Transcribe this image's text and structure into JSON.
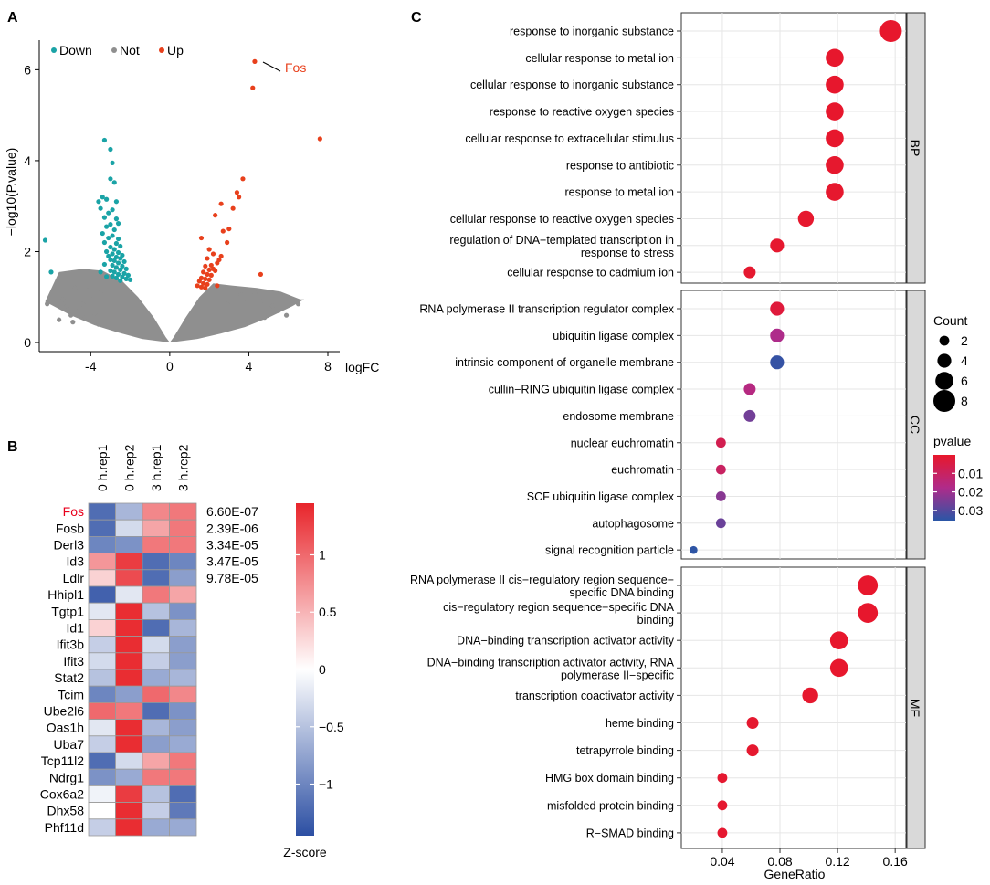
{
  "panels": {
    "A": "A",
    "B": "B",
    "C": "C"
  },
  "chart_data": [
    {
      "type": "scatter",
      "panel": "A",
      "title": "",
      "xlabel": "logFC",
      "ylabel": "−log10(P.value)",
      "xlim": [
        -6.6,
        8.6
      ],
      "ylim": [
        -0.2,
        6.65
      ],
      "xticks": [
        -4,
        0,
        4,
        8
      ],
      "yticks": [
        0,
        2,
        4,
        6
      ],
      "legend": {
        "position": "top-left",
        "entries": [
          {
            "name": "Down",
            "color": "#1aa3a6"
          },
          {
            "name": "Not",
            "color": "#8f8f8f"
          },
          {
            "name": "Up",
            "color": "#e8401c"
          }
        ]
      },
      "annotation": {
        "label": "Fos",
        "x": 4.3,
        "y": 6.18,
        "color": "#e8401c"
      },
      "up_points": [
        [
          4.3,
          6.18
        ],
        [
          4.2,
          5.6
        ],
        [
          7.6,
          4.48
        ],
        [
          3.7,
          3.6
        ],
        [
          3.4,
          3.3
        ],
        [
          3.5,
          3.2
        ],
        [
          3.2,
          2.95
        ],
        [
          2.6,
          3.05
        ],
        [
          2.3,
          2.8
        ],
        [
          3.0,
          2.5
        ],
        [
          2.7,
          2.45
        ],
        [
          1.6,
          2.3
        ],
        [
          2.9,
          2.2
        ],
        [
          2.0,
          2.05
        ],
        [
          2.2,
          1.95
        ],
        [
          2.5,
          1.82
        ],
        [
          2.6,
          1.9
        ],
        [
          1.9,
          1.85
        ],
        [
          2.4,
          1.75
        ],
        [
          2.1,
          1.7
        ],
        [
          1.8,
          1.68
        ],
        [
          2.0,
          1.6
        ],
        [
          2.2,
          1.62
        ],
        [
          1.7,
          1.55
        ],
        [
          2.3,
          1.58
        ],
        [
          1.9,
          1.5
        ],
        [
          2.1,
          1.48
        ],
        [
          1.6,
          1.42
        ],
        [
          1.8,
          1.4
        ],
        [
          2.0,
          1.38
        ],
        [
          1.5,
          1.35
        ],
        [
          1.7,
          1.3
        ],
        [
          1.9,
          1.28
        ],
        [
          1.4,
          1.25
        ],
        [
          1.6,
          1.22
        ],
        [
          1.8,
          1.2
        ],
        [
          2.4,
          1.25
        ],
        [
          4.6,
          1.5
        ]
      ],
      "down_points": [
        [
          -3.3,
          4.45
        ],
        [
          -3.0,
          4.25
        ],
        [
          -2.9,
          3.95
        ],
        [
          -3.0,
          3.6
        ],
        [
          -2.8,
          3.52
        ],
        [
          -3.4,
          3.2
        ],
        [
          -3.6,
          3.1
        ],
        [
          -3.2,
          3.15
        ],
        [
          -2.7,
          3.1
        ],
        [
          -3.5,
          2.95
        ],
        [
          -2.9,
          2.92
        ],
        [
          -3.1,
          2.85
        ],
        [
          -3.3,
          2.75
        ],
        [
          -2.7,
          2.72
        ],
        [
          -3.0,
          2.6
        ],
        [
          -2.6,
          2.62
        ],
        [
          -3.2,
          2.55
        ],
        [
          -2.8,
          2.48
        ],
        [
          -3.4,
          2.4
        ],
        [
          -2.9,
          2.35
        ],
        [
          -3.1,
          2.3
        ],
        [
          -2.6,
          2.28
        ],
        [
          -3.3,
          2.2
        ],
        [
          -2.7,
          2.18
        ],
        [
          -2.5,
          2.12
        ],
        [
          -3.0,
          2.1
        ],
        [
          -2.8,
          2.05
        ],
        [
          -3.2,
          2.0
        ],
        [
          -2.6,
          1.98
        ],
        [
          -2.9,
          1.95
        ],
        [
          -2.4,
          1.92
        ],
        [
          -3.1,
          1.9
        ],
        [
          -2.7,
          1.88
        ],
        [
          -2.5,
          1.85
        ],
        [
          -3.0,
          1.82
        ],
        [
          -2.8,
          1.8
        ],
        [
          -2.3,
          1.78
        ],
        [
          -2.6,
          1.75
        ],
        [
          -3.3,
          1.72
        ],
        [
          -2.9,
          1.7
        ],
        [
          -2.4,
          1.68
        ],
        [
          -2.7,
          1.65
        ],
        [
          -2.2,
          1.62
        ],
        [
          -2.5,
          1.6
        ],
        [
          -3.0,
          1.58
        ],
        [
          -2.8,
          1.55
        ],
        [
          -2.3,
          1.52
        ],
        [
          -2.6,
          1.5
        ],
        [
          -2.1,
          1.48
        ],
        [
          -2.9,
          1.46
        ],
        [
          -2.4,
          1.44
        ],
        [
          -2.7,
          1.42
        ],
        [
          -2.2,
          1.4
        ],
        [
          -3.2,
          1.45
        ],
        [
          -3.5,
          1.55
        ],
        [
          -2.0,
          1.38
        ],
        [
          -2.5,
          1.36
        ],
        [
          -6.0,
          1.55
        ],
        [
          -6.3,
          2.25
        ]
      ],
      "not_points": [
        [
          -6.2,
          0.85
        ],
        [
          -4.8,
          1.2
        ],
        [
          -4.1,
          1.15
        ],
        [
          -3.9,
          0.95
        ],
        [
          -4.6,
          0.7
        ],
        [
          -5.2,
          0.8
        ],
        [
          -5.6,
          0.5
        ],
        [
          -4.3,
          0.55
        ],
        [
          -3.6,
          0.4
        ],
        [
          -4.9,
          0.45
        ],
        [
          -3.8,
          0.65
        ],
        [
          -4.4,
          0.85
        ],
        [
          -5.0,
          0.6
        ],
        [
          -5.4,
          0.95
        ],
        [
          -3.5,
          1.1
        ],
        [
          6.2,
          0.95
        ],
        [
          5.6,
          1.05
        ],
        [
          5.2,
          0.8
        ],
        [
          4.8,
          0.55
        ],
        [
          5.5,
          0.7
        ],
        [
          4.6,
          0.9
        ],
        [
          3.9,
          0.95
        ],
        [
          4.3,
          1.1
        ],
        [
          5.9,
          0.6
        ],
        [
          6.5,
          0.85
        ],
        [
          4.0,
          0.45
        ],
        [
          3.3,
          0.7
        ],
        [
          2.9,
          0.85
        ],
        [
          3.6,
          1.05
        ]
      ],
      "envelope": {
        "left": [
          [
            -5.6,
            1.55
          ],
          [
            -4.4,
            1.62
          ],
          [
            -3.4,
            1.58
          ],
          [
            -2.4,
            1.35
          ],
          [
            -1.6,
            1.0
          ],
          [
            -0.8,
            0.55
          ],
          [
            -0.2,
            0.12
          ],
          [
            0,
            0
          ]
        ],
        "right": [
          [
            0,
            0
          ],
          [
            0.2,
            0.12
          ],
          [
            0.8,
            0.55
          ],
          [
            1.5,
            1.0
          ],
          [
            2.2,
            1.3
          ],
          [
            3.2,
            1.25
          ],
          [
            4.4,
            1.2
          ],
          [
            5.6,
            1.12
          ],
          [
            6.6,
            0.95
          ]
        ],
        "bottom_left": [
          [
            -6.3,
            0.9
          ],
          [
            -5.0,
            0.6
          ],
          [
            -3.8,
            0.38
          ],
          [
            -2.6,
            0.22
          ],
          [
            -1.4,
            0.08
          ],
          [
            0,
            0
          ]
        ],
        "bottom_right": [
          [
            0,
            0
          ],
          [
            1.4,
            0.08
          ],
          [
            2.6,
            0.2
          ],
          [
            3.8,
            0.34
          ],
          [
            5.0,
            0.55
          ],
          [
            6.2,
            0.8
          ],
          [
            6.8,
            0.95
          ]
        ]
      }
    },
    {
      "type": "heatmap",
      "panel": "B",
      "columns": [
        "0 h.rep1",
        "0 h.rep2",
        "3 h.rep1",
        "3 h.rep2"
      ],
      "rows": [
        "Fos",
        "Fosb",
        "Derl3",
        "Id3",
        "Ldlr",
        "Hhipl1",
        "Tgtp1",
        "Id1",
        "Ifit3b",
        "Ifit3",
        "Stat2",
        "Tcim",
        "Ube2l6",
        "Oas1h",
        "Uba7",
        "Tcp11l2",
        "Ndrg1",
        "Cox6a2",
        "Dhx58",
        "Phf11d"
      ],
      "highlight_row": "Fos",
      "highlight_color": "#e8001c",
      "values": [
        [
          -1.2,
          -0.6,
          0.8,
          0.9
        ],
        [
          -1.2,
          -0.3,
          0.6,
          0.9
        ],
        [
          -1.0,
          -0.9,
          0.9,
          0.9
        ],
        [
          0.7,
          1.3,
          -1.2,
          -1.0
        ],
        [
          0.3,
          1.2,
          -1.2,
          -0.8
        ],
        [
          -1.3,
          -0.2,
          0.9,
          0.6
        ],
        [
          -0.2,
          1.4,
          -0.5,
          -0.9
        ],
        [
          0.3,
          1.4,
          -1.2,
          -0.6
        ],
        [
          -0.4,
          1.4,
          -0.3,
          -0.8
        ],
        [
          -0.3,
          1.4,
          -0.4,
          -0.8
        ],
        [
          -0.5,
          1.4,
          -0.7,
          -0.6
        ],
        [
          -1.0,
          -0.8,
          1.0,
          0.8
        ],
        [
          1.0,
          0.9,
          -1.2,
          -0.9
        ],
        [
          -0.2,
          1.4,
          -0.6,
          -0.8
        ],
        [
          -0.4,
          1.4,
          -0.8,
          -0.7
        ],
        [
          -1.2,
          -0.3,
          0.6,
          0.9
        ],
        [
          -0.9,
          -0.7,
          0.9,
          0.9
        ],
        [
          -0.1,
          1.3,
          -0.5,
          -1.2
        ],
        [
          0.0,
          1.4,
          -0.4,
          -1.1
        ],
        [
          -0.4,
          1.4,
          -0.7,
          -0.7
        ]
      ],
      "pvalues": [
        "6.60E-07",
        "2.39E-06",
        "3.34E-05",
        "3.47E-05",
        "9.78E-05"
      ],
      "colorbar": {
        "label": "Z-score",
        "ticks": [
          1,
          0.5,
          0,
          -0.5,
          -1
        ],
        "tick_labels": [
          "1",
          "0.5",
          "0",
          "−0.5",
          "−1"
        ],
        "range": [
          -1.45,
          1.45
        ],
        "colors": {
          "low": "#2c4fa3",
          "mid": "#ffffff",
          "high": "#e8252b"
        }
      }
    },
    {
      "type": "scatter",
      "subtype": "dotplot",
      "panel": "C",
      "xlabel": "GeneRatio",
      "xlim": [
        0.0115,
        0.1675
      ],
      "xticks": [
        0.04,
        0.08,
        0.12,
        0.16
      ],
      "xtick_labels": [
        "0.04",
        "0.08",
        "0.12",
        "0.16"
      ],
      "size_legend": {
        "title": "Count",
        "values": [
          2,
          4,
          6,
          8
        ],
        "labels": [
          "2",
          "4",
          "6",
          "8"
        ]
      },
      "color_legend": {
        "title": "pvalue",
        "ticks": [
          0.01,
          0.02,
          0.03
        ],
        "labels": [
          "0.01",
          "0.02",
          "0.03"
        ],
        "range": [
          0.0,
          0.0355
        ]
      },
      "color_scale": {
        "low_p": "#e8172b",
        "mid_p": "#b02b8a",
        "high_p": "#2a56a6"
      },
      "groups": [
        {
          "name": "BP",
          "terms": [
            {
              "label": [
                "response to inorganic substance"
              ],
              "ratio": 0.157,
              "count": 8,
              "p": 0.0002
            },
            {
              "label": [
                "cellular response to metal ion"
              ],
              "ratio": 0.118,
              "count": 6,
              "p": 0.0003
            },
            {
              "label": [
                "cellular response to inorganic substance"
              ],
              "ratio": 0.118,
              "count": 6,
              "p": 0.0003
            },
            {
              "label": [
                "response to reactive oxygen species"
              ],
              "ratio": 0.118,
              "count": 6,
              "p": 0.0004
            },
            {
              "label": [
                "cellular response to extracellular stimulus"
              ],
              "ratio": 0.118,
              "count": 6,
              "p": 0.0004
            },
            {
              "label": [
                "response to antibiotic"
              ],
              "ratio": 0.118,
              "count": 6,
              "p": 0.0005
            },
            {
              "label": [
                "response to metal ion"
              ],
              "ratio": 0.118,
              "count": 6,
              "p": 0.0005
            },
            {
              "label": [
                "cellular response to reactive oxygen species"
              ],
              "ratio": 0.098,
              "count": 5,
              "p": 0.0006
            },
            {
              "label": [
                "regulation of DNA−templated transcription in",
                "response to stress"
              ],
              "ratio": 0.078,
              "count": 4,
              "p": 0.0007
            },
            {
              "label": [
                "cellular response to cadmium ion"
              ],
              "ratio": 0.059,
              "count": 3,
              "p": 0.0008
            }
          ]
        },
        {
          "name": "CC",
          "terms": [
            {
              "label": [
                "RNA polymerase II transcription regulator complex"
              ],
              "ratio": 0.078,
              "count": 4,
              "p": 0.003
            },
            {
              "label": [
                "ubiquitin ligase complex"
              ],
              "ratio": 0.078,
              "count": 4,
              "p": 0.018
            },
            {
              "label": [
                "intrinsic component of organelle membrane"
              ],
              "ratio": 0.078,
              "count": 4,
              "p": 0.034
            },
            {
              "label": [
                "cullin−RING ubiquitin ligase complex"
              ],
              "ratio": 0.059,
              "count": 3,
              "p": 0.016
            },
            {
              "label": [
                "endosome membrane"
              ],
              "ratio": 0.059,
              "count": 3,
              "p": 0.026
            },
            {
              "label": [
                "nuclear euchromatin"
              ],
              "ratio": 0.039,
              "count": 2,
              "p": 0.007
            },
            {
              "label": [
                "euchromatin"
              ],
              "ratio": 0.039,
              "count": 2,
              "p": 0.01
            },
            {
              "label": [
                "SCF ubiquitin ligase complex"
              ],
              "ratio": 0.039,
              "count": 2,
              "p": 0.023
            },
            {
              "label": [
                "autophagosome"
              ],
              "ratio": 0.039,
              "count": 2,
              "p": 0.027
            },
            {
              "label": [
                "signal recognition particle"
              ],
              "ratio": 0.02,
              "count": 1,
              "p": 0.035
            }
          ]
        },
        {
          "name": "MF",
          "terms": [
            {
              "label": [
                "RNA polymerase II cis−regulatory region sequence−",
                "specific DNA binding"
              ],
              "ratio": 0.141,
              "count": 7,
              "p": 0.0003
            },
            {
              "label": [
                "cis−regulatory region sequence−specific DNA",
                "binding"
              ],
              "ratio": 0.141,
              "count": 7,
              "p": 0.0003
            },
            {
              "label": [
                "DNA−binding transcription activator activity"
              ],
              "ratio": 0.121,
              "count": 6,
              "p": 0.0004
            },
            {
              "label": [
                "DNA−binding transcription activator activity, RNA",
                "polymerase II−specific"
              ],
              "ratio": 0.121,
              "count": 6,
              "p": 0.0004
            },
            {
              "label": [
                "transcription coactivator activity"
              ],
              "ratio": 0.101,
              "count": 5,
              "p": 0.0006
            },
            {
              "label": [
                "heme binding"
              ],
              "ratio": 0.061,
              "count": 3,
              "p": 0.0008
            },
            {
              "label": [
                "tetrapyrrole binding"
              ],
              "ratio": 0.061,
              "count": 3,
              "p": 0.0008
            },
            {
              "label": [
                "HMG box domain binding"
              ],
              "ratio": 0.04,
              "count": 2,
              "p": 0.001
            },
            {
              "label": [
                "misfolded protein binding"
              ],
              "ratio": 0.04,
              "count": 2,
              "p": 0.001
            },
            {
              "label": [
                "R−SMAD binding"
              ],
              "ratio": 0.04,
              "count": 2,
              "p": 0.001
            }
          ]
        }
      ]
    }
  ]
}
